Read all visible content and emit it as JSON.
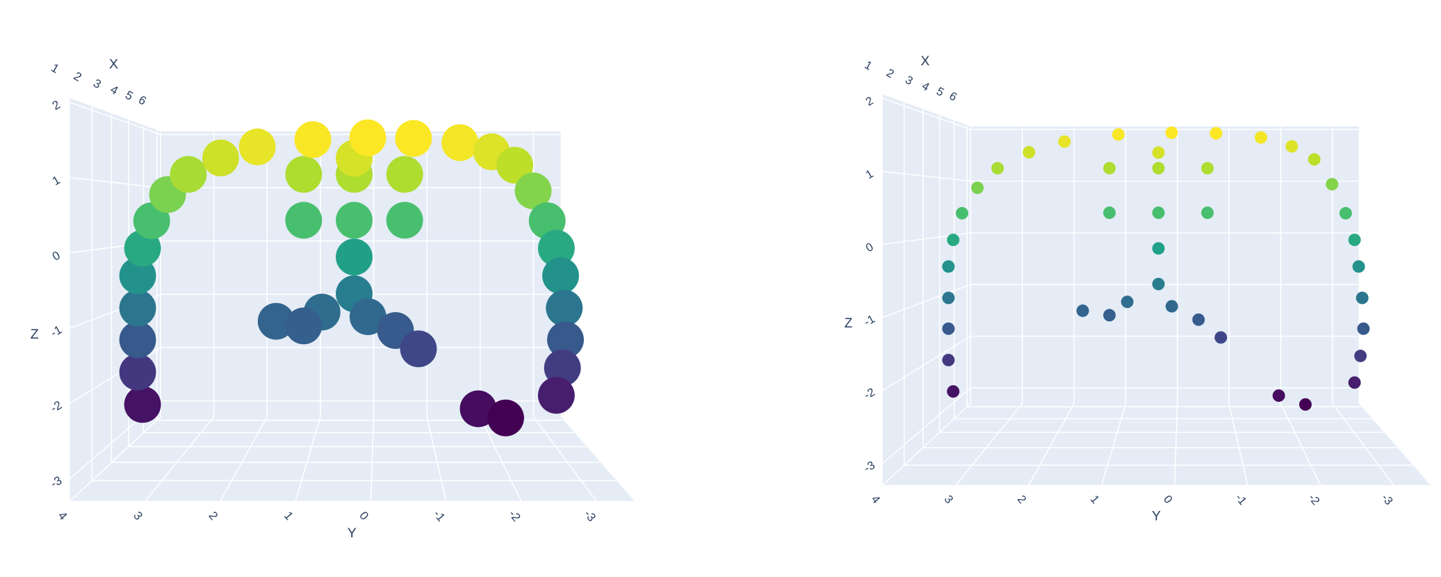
{
  "chart_data": [
    {
      "type": "scatter3d",
      "colorscale": "Viridis",
      "marker_size": 20,
      "xlabel": "X",
      "ylabel": "Y",
      "zlabel": "Z",
      "xlim": [
        1,
        6.3
      ],
      "ylim": [
        -3.5,
        4
      ],
      "zlim": [
        -3.3,
        2.05
      ],
      "xticks": [
        1,
        2,
        3,
        4,
        5,
        6
      ],
      "yticks": [
        4,
        3,
        2,
        1,
        0,
        -1,
        -2,
        -3
      ],
      "zticks": [
        2,
        1,
        0,
        -1,
        -2,
        -3
      ],
      "x": [
        4,
        4,
        4,
        4,
        4,
        4,
        4,
        4,
        4,
        4,
        4,
        4,
        4,
        4,
        4,
        4,
        4,
        4,
        4,
        4,
        4,
        4,
        4,
        4,
        4,
        4,
        4,
        5,
        5,
        5,
        5,
        5,
        5,
        5,
        5,
        5,
        5,
        5,
        5,
        5,
        5,
        5
      ],
      "y": [
        3.77,
        3.85,
        3.85,
        3.85,
        3.85,
        3.77,
        3.62,
        3.36,
        3.02,
        2.49,
        1.89,
        0.98,
        0.08,
        -0.67,
        -1.43,
        -1.95,
        -2.33,
        -2.63,
        -2.86,
        -3.01,
        -3.08,
        -3.14,
        -3.16,
        -3.11,
        -3.01,
        -1.73,
        -2.18,
        1.21,
        0.33,
        -0.55,
        1.21,
        0.33,
        -0.55,
        0.33,
        0.33,
        0.33,
        1.69,
        0.89,
        0.09,
        -0.39,
        -0.79,
        1.21
      ],
      "z": [
        -2.61,
        -2.08,
        -1.55,
        -1.03,
        -0.5,
        -0.05,
        0.4,
        0.83,
        1.16,
        1.43,
        1.61,
        1.73,
        1.76,
        1.75,
        1.68,
        1.53,
        1.31,
        0.89,
        0.4,
        -0.05,
        -0.5,
        -1.03,
        -1.55,
        -2.01,
        -2.46,
        -2.68,
        -2.83,
        1.2,
        1.2,
        1.2,
        0.4,
        0.4,
        0.4,
        1.48,
        -0.24,
        -0.88,
        -1.36,
        -1.2,
        -1.28,
        -1.52,
        -1.84,
        -1.44
      ]
    },
    {
      "type": "scatter3d",
      "colorscale": "Viridis",
      "marker_size": 7,
      "xlabel": "X",
      "ylabel": "Y",
      "zlabel": "Z",
      "xlim": [
        1,
        6.3
      ],
      "ylim": [
        -3.5,
        4
      ],
      "zlim": [
        -3.3,
        2.05
      ],
      "xticks": [
        1,
        2,
        3,
        4,
        5,
        6
      ],
      "yticks": [
        4,
        3,
        2,
        1,
        0,
        -1,
        -2,
        -3
      ],
      "zticks": [
        2,
        1,
        0,
        -1,
        -2,
        -3
      ],
      "x": [
        4,
        4,
        4,
        4,
        4,
        4,
        4,
        4,
        4,
        4,
        4,
        4,
        4,
        4,
        4,
        4,
        4,
        4,
        4,
        4,
        4,
        4,
        4,
        4,
        4,
        4,
        4,
        5,
        5,
        5,
        5,
        5,
        5,
        5,
        5,
        5,
        5,
        5,
        5,
        5,
        5,
        5
      ],
      "y": [
        3.77,
        3.85,
        3.85,
        3.85,
        3.85,
        3.77,
        3.62,
        3.36,
        3.02,
        2.49,
        1.89,
        0.98,
        0.08,
        -0.67,
        -1.43,
        -1.95,
        -2.33,
        -2.63,
        -2.86,
        -3.01,
        -3.08,
        -3.14,
        -3.16,
        -3.11,
        -3.01,
        -1.73,
        -2.18,
        1.21,
        0.33,
        -0.55,
        1.21,
        0.33,
        -0.55,
        0.33,
        0.33,
        0.33,
        1.69,
        0.89,
        0.09,
        -0.39,
        -0.79,
        1.21
      ],
      "z": [
        -2.61,
        -2.08,
        -1.55,
        -1.03,
        -0.5,
        -0.05,
        0.4,
        0.83,
        1.16,
        1.43,
        1.61,
        1.73,
        1.76,
        1.75,
        1.68,
        1.53,
        1.31,
        0.89,
        0.4,
        -0.05,
        -0.5,
        -1.03,
        -1.55,
        -2.01,
        -2.46,
        -2.68,
        -2.83,
        1.2,
        1.2,
        1.2,
        0.4,
        0.4,
        0.4,
        1.48,
        -0.24,
        -0.88,
        -1.36,
        -1.2,
        -1.28,
        -1.52,
        -1.84,
        -1.44
      ]
    }
  ]
}
